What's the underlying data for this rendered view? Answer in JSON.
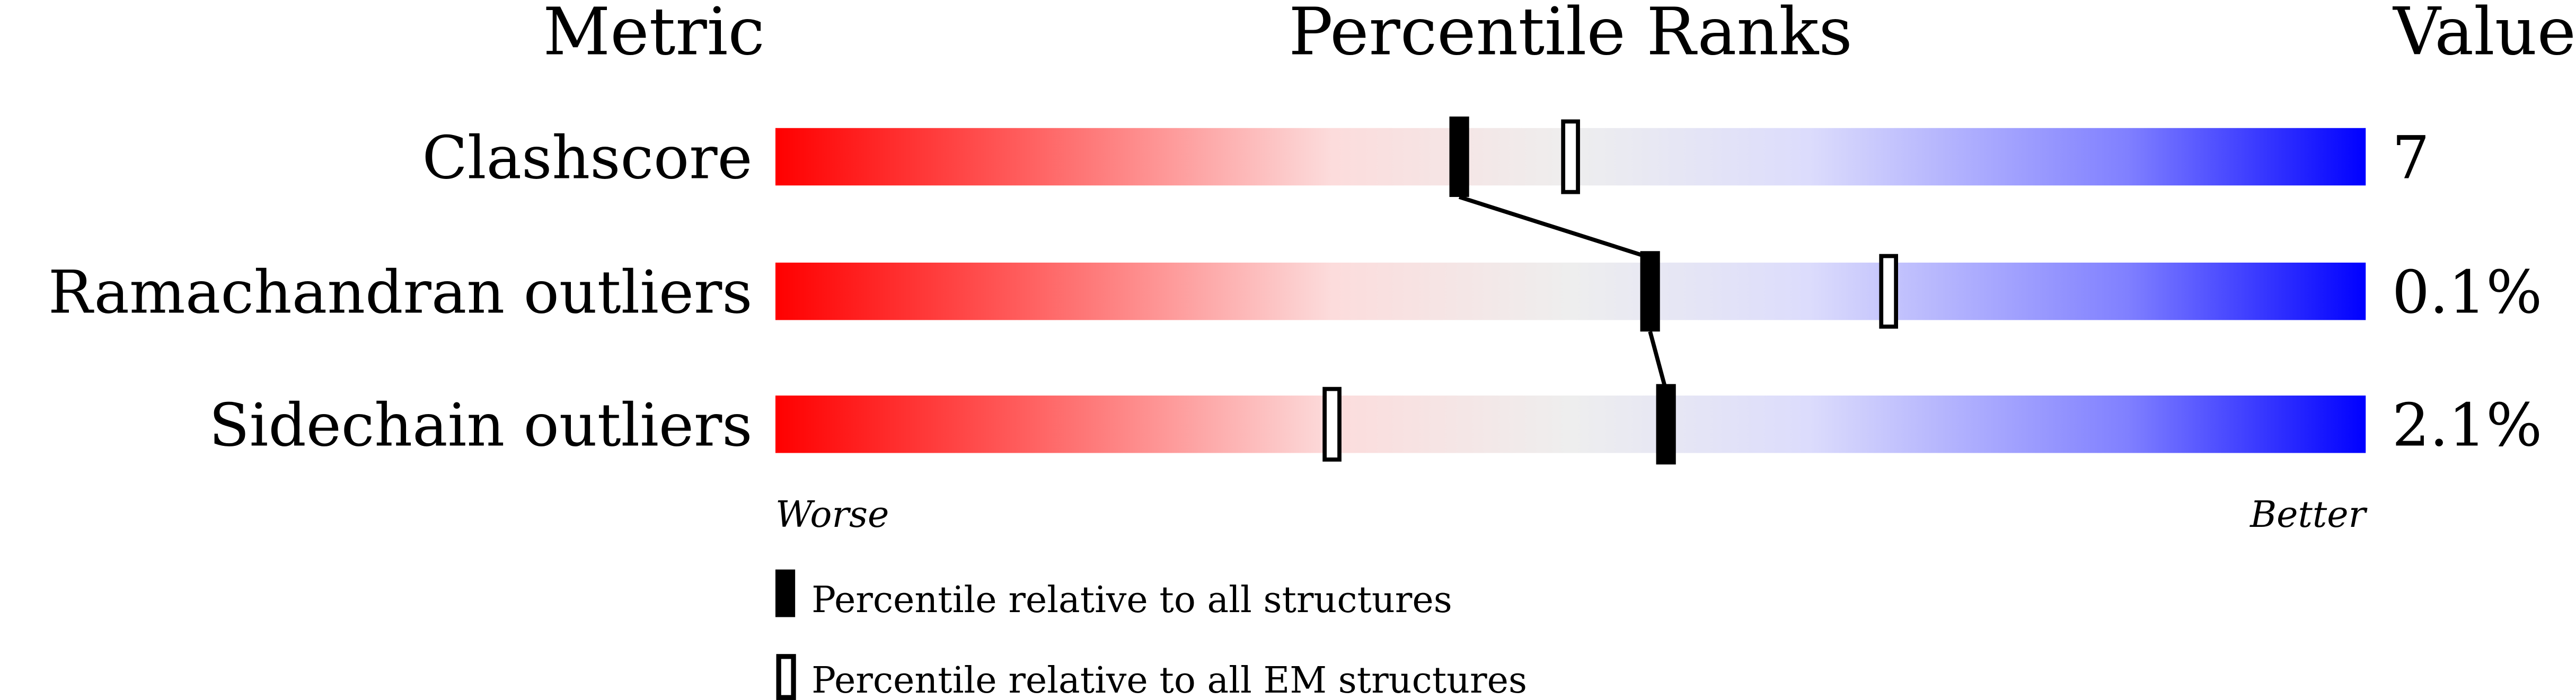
{
  "chart_data": {
    "type": "percentile-bar",
    "headers": {
      "metric": "Metric",
      "ranks": "Percentile Ranks",
      "value": "Value"
    },
    "xlim": [
      0,
      100
    ],
    "colors": {
      "worse": "#ff0000",
      "middle": "#eeeeee",
      "better": "#0000ff",
      "marker": "#000000"
    },
    "metrics": [
      {
        "name": "Clashscore",
        "value": "7",
        "percentile_all": 43,
        "percentile_em": 50
      },
      {
        "name": "Ramachandran outliers",
        "value": "0.1%",
        "percentile_all": 55,
        "percentile_em": 70
      },
      {
        "name": "Sidechain outliers",
        "value": "2.1%",
        "percentile_all": 56,
        "percentile_em": 35
      }
    ],
    "axis_labels": {
      "worse": "Worse",
      "better": "Better"
    },
    "legend": {
      "all": "Percentile relative to all structures",
      "em": "Percentile relative to all EM structures"
    }
  }
}
